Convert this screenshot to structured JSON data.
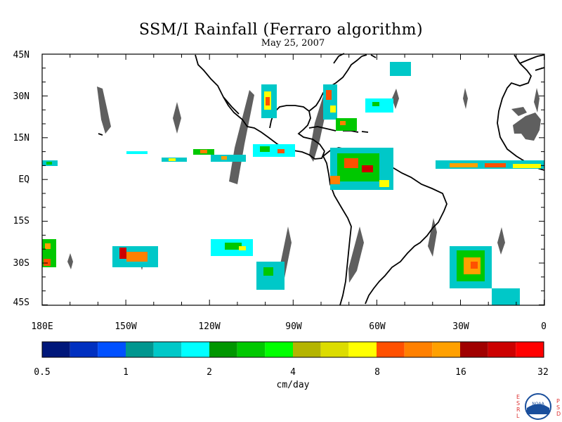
{
  "title": "SSM/I Rainfall (Ferraro algorithm)",
  "subtitle": "May 25, 2007",
  "lat_labels": [
    "45N",
    "30N",
    "15N",
    "EQ",
    "15S",
    "30S",
    "45S"
  ],
  "lon_labels": [
    "180E",
    "150W",
    "120W",
    "90W",
    "60W",
    "30W",
    "0"
  ],
  "colorbar": {
    "units": "cm/day",
    "tick_labels": [
      "0.5",
      "1",
      "2",
      "4",
      "8",
      "16",
      "32"
    ],
    "colors": [
      "#00177a",
      "#0030c0",
      "#0050ff",
      "#00968f",
      "#00c8c8",
      "#00ffff",
      "#009600",
      "#00c800",
      "#00ff00",
      "#b4b400",
      "#dcdc00",
      "#ffff00",
      "#ff5000",
      "#ff8000",
      "#ffa000",
      "#a00000",
      "#cc0000",
      "#ff0000"
    ]
  },
  "logo": {
    "left_text": "ESRL",
    "right_text": "PSD",
    "center_text": "NOAA"
  }
}
